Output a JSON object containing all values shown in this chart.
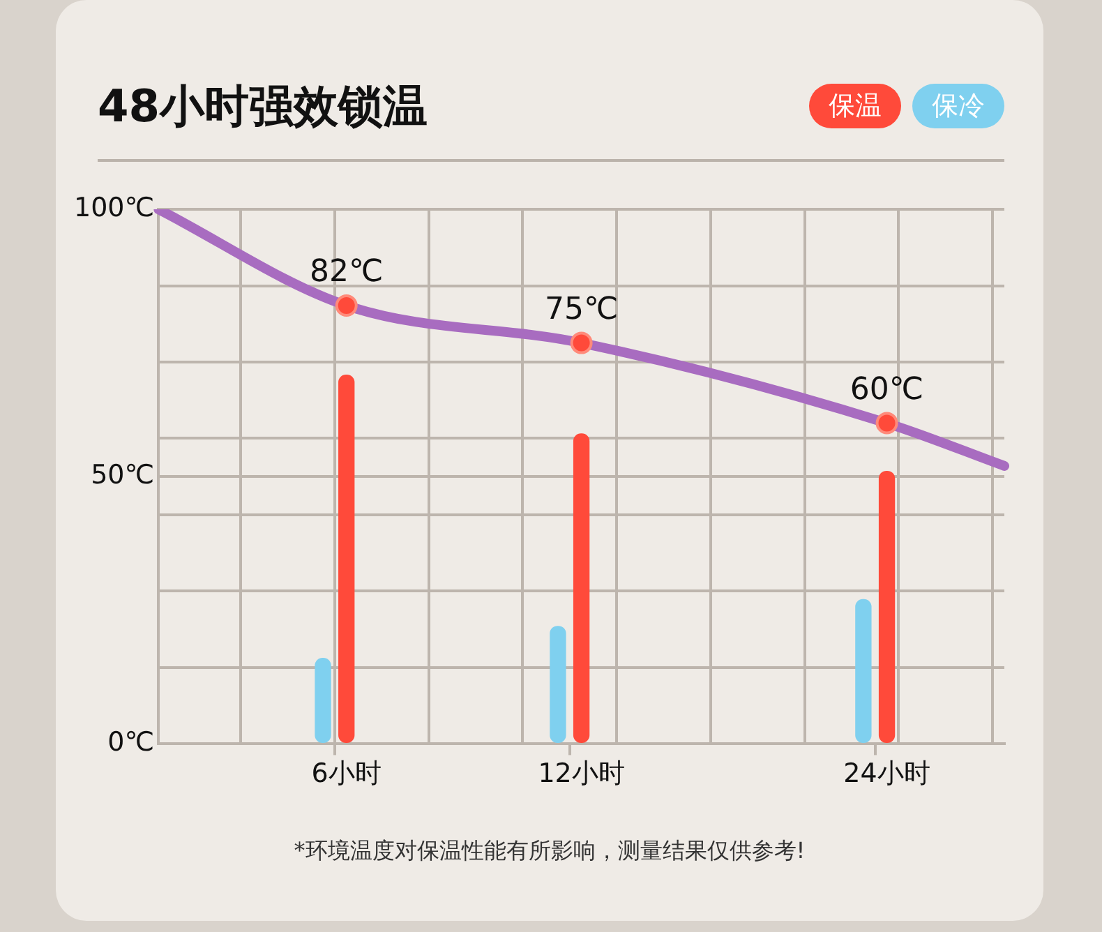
{
  "chart_data": {
    "type": "line",
    "title": "48小时强效锁温",
    "annotations": [
      "*环境温度对保温性能有所影响，测量结果仅供参考!"
    ],
    "categories": [
      null,
      null,
      null,
      null,
      null,
      null,
      null,
      null,
      "6小时",
      null,
      null,
      null,
      null,
      null,
      null,
      null,
      null,
      null,
      "12小时",
      null,
      null,
      null,
      null,
      null,
      null,
      null,
      null,
      null,
      null,
      null,
      null,
      "24小时",
      null,
      null,
      null,
      null,
      null
    ],
    "ylim": [
      0,
      100
    ],
    "yticks": [
      {
        "value": 0,
        "label": "0℃"
      },
      {
        "value": 14.29,
        "label": null
      },
      {
        "value": 28.57,
        "label": null
      },
      {
        "value": 42.86,
        "label": null
      },
      {
        "value": 50,
        "label": "50℃"
      },
      {
        "value": 57.14,
        "label": null
      },
      {
        "value": 71.43,
        "label": null
      },
      {
        "value": 85.71,
        "label": null
      },
      {
        "value": 100,
        "label": "100℃"
      }
    ],
    "grid": true,
    "legend": "top right",
    "marker": "circle",
    "series": [
      {
        "color": "#a86cc0",
        "values": [
          100,
          null,
          null,
          null,
          null,
          null,
          null,
          null,
          82,
          null,
          null,
          null,
          null,
          null,
          null,
          null,
          null,
          null,
          75,
          null,
          null,
          null,
          null,
          null,
          null,
          null,
          null,
          null,
          null,
          null,
          null,
          60,
          null,
          null,
          null,
          null,
          52
        ],
        "value_labels": [
          null,
          null,
          null,
          null,
          null,
          null,
          null,
          null,
          "82℃",
          null,
          null,
          null,
          null,
          null,
          null,
          null,
          null,
          null,
          "75℃",
          null,
          null,
          null,
          null,
          null,
          null,
          null,
          null,
          null,
          null,
          null,
          null,
          "60℃",
          null,
          null,
          null,
          null,
          null
        ]
      },
      {
        "type": "bar",
        "name": "保温",
        "color": "#ff4a3a",
        "values": [
          null,
          null,
          null,
          null,
          null,
          null,
          null,
          null,
          69,
          null,
          null,
          null,
          null,
          null,
          null,
          null,
          null,
          null,
          58,
          null,
          null,
          null,
          null,
          null,
          null,
          null,
          null,
          null,
          null,
          null,
          null,
          51,
          null,
          null,
          null,
          null,
          null
        ]
      },
      {
        "type": "bar",
        "name": "保冷",
        "color": "#7fd0ef",
        "values": [
          null,
          null,
          null,
          null,
          null,
          null,
          null,
          16,
          null,
          null,
          null,
          null,
          null,
          null,
          null,
          null,
          null,
          22,
          null,
          null,
          null,
          null,
          null,
          null,
          null,
          null,
          null,
          null,
          null,
          null,
          27,
          null,
          null,
          null,
          null,
          null,
          null
        ]
      }
    ]
  }
}
